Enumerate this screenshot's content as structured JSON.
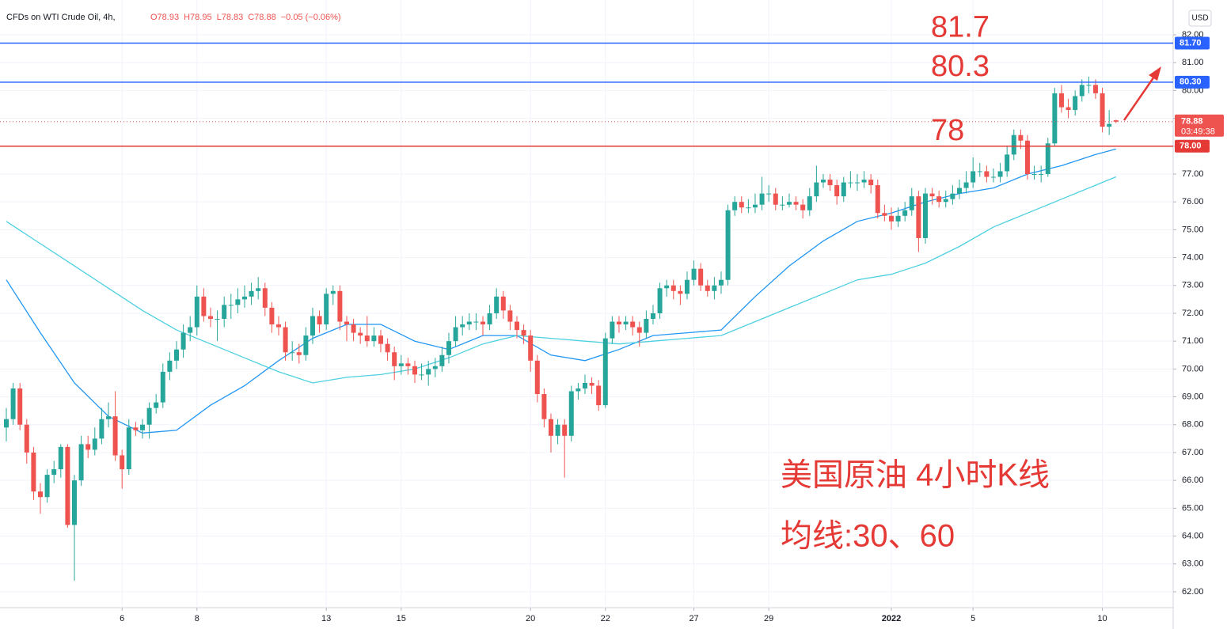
{
  "header": {
    "title": "CFDs on WTI Crude Oil, 4h,",
    "values": [
      "O78.93",
      "H78.95",
      "L78.83",
      "C78.88",
      "−0.05 (−0.06%)"
    ],
    "currency": "USD"
  },
  "chart_data": {
    "type": "candlestick",
    "xlim": [
      -0.93,
      171.4
    ],
    "xticks": [
      {
        "value": 17,
        "label": "6"
      },
      {
        "value": 28,
        "label": "8"
      },
      {
        "value": 47,
        "label": "13"
      },
      {
        "value": 58,
        "label": "15"
      },
      {
        "value": 77,
        "label": "20"
      },
      {
        "value": 88,
        "label": "22"
      },
      {
        "value": 101,
        "label": "27"
      },
      {
        "value": 112,
        "label": "29"
      },
      {
        "value": 130,
        "label": "2022"
      },
      {
        "value": 142,
        "label": "5"
      },
      {
        "value": 161,
        "label": "10"
      }
    ],
    "ylim": [
      61.43,
      83.25
    ],
    "yticks": [
      {
        "value": 62,
        "label": "62.00"
      },
      {
        "value": 63,
        "label": "63.00"
      },
      {
        "value": 64,
        "label": "64.00"
      },
      {
        "value": 65,
        "label": "65.00"
      },
      {
        "value": 66,
        "label": "66.00"
      },
      {
        "value": 67,
        "label": "67.00"
      },
      {
        "value": 68,
        "label": "68.00"
      },
      {
        "value": 69,
        "label": "69.00"
      },
      {
        "value": 70,
        "label": "70.00"
      },
      {
        "value": 71,
        "label": "71.00"
      },
      {
        "value": 72,
        "label": "72.00"
      },
      {
        "value": 73,
        "label": "73.00"
      },
      {
        "value": 74,
        "label": "74.00"
      },
      {
        "value": 75,
        "label": "75.00"
      },
      {
        "value": 76,
        "label": "76.00"
      },
      {
        "value": 77,
        "label": "77.00"
      },
      {
        "value": 78,
        "label": "78.00"
      },
      {
        "value": 79,
        "label": "79.00"
      },
      {
        "value": 80,
        "label": "80.00"
      },
      {
        "value": 81,
        "label": "81.00"
      },
      {
        "value": 82,
        "label": "82.00"
      }
    ],
    "grid": true,
    "up_color": "#26a69a",
    "down_color": "#ef5350",
    "candles": [
      [
        67.9,
        68.6,
        67.4,
        68.2
      ],
      [
        68.2,
        69.5,
        68.0,
        69.3
      ],
      [
        69.3,
        69.5,
        67.8,
        68.0
      ],
      [
        68.0,
        68.2,
        66.6,
        67.0
      ],
      [
        67.0,
        67.2,
        65.3,
        65.6
      ],
      [
        65.6,
        65.9,
        64.8,
        65.4
      ],
      [
        65.4,
        66.4,
        65.2,
        66.2
      ],
      [
        66.2,
        66.7,
        65.9,
        66.4
      ],
      [
        66.4,
        67.3,
        66.1,
        67.2
      ],
      [
        67.2,
        67.3,
        64.3,
        64.4
      ],
      [
        64.4,
        66.2,
        62.4,
        66.0
      ],
      [
        66.0,
        67.6,
        65.8,
        67.3
      ],
      [
        67.3,
        67.6,
        66.8,
        67.1
      ],
      [
        67.1,
        67.9,
        66.9,
        67.5
      ],
      [
        67.5,
        68.6,
        67.3,
        68.2
      ],
      [
        68.2,
        68.8,
        67.9,
        68.3
      ],
      [
        68.3,
        69.2,
        66.7,
        66.9
      ],
      [
        66.9,
        67.1,
        65.7,
        66.4
      ],
      [
        66.4,
        68.2,
        66.2,
        67.9
      ],
      [
        67.9,
        68.1,
        67.6,
        67.8
      ],
      [
        67.8,
        68.2,
        67.5,
        68.0
      ],
      [
        68.0,
        68.8,
        67.5,
        68.6
      ],
      [
        68.6,
        69.1,
        68.4,
        68.8
      ],
      [
        68.8,
        70.2,
        68.6,
        69.9
      ],
      [
        69.9,
        70.6,
        69.6,
        70.3
      ],
      [
        70.3,
        71.0,
        70.0,
        70.7
      ],
      [
        70.7,
        71.6,
        70.4,
        71.3
      ],
      [
        71.3,
        71.9,
        71.0,
        71.5
      ],
      [
        71.5,
        73.0,
        71.2,
        72.6
      ],
      [
        72.6,
        72.9,
        71.7,
        71.9
      ],
      [
        71.9,
        72.2,
        71.5,
        71.8
      ],
      [
        71.8,
        72.1,
        71.0,
        71.8
      ],
      [
        71.8,
        72.6,
        71.5,
        72.3
      ],
      [
        72.3,
        72.7,
        71.8,
        72.3
      ],
      [
        72.3,
        72.9,
        72.0,
        72.5
      ],
      [
        72.5,
        73.0,
        72.2,
        72.6
      ],
      [
        72.6,
        73.1,
        72.3,
        72.8
      ],
      [
        72.8,
        73.3,
        72.5,
        72.9
      ],
      [
        72.9,
        73.1,
        71.9,
        72.2
      ],
      [
        72.2,
        72.4,
        71.3,
        71.6
      ],
      [
        71.6,
        71.9,
        71.2,
        71.5
      ],
      [
        71.5,
        71.7,
        70.3,
        70.6
      ],
      [
        70.6,
        71.0,
        70.3,
        70.6
      ],
      [
        70.6,
        70.9,
        70.2,
        70.5
      ],
      [
        70.5,
        71.5,
        70.3,
        71.2
      ],
      [
        71.2,
        72.2,
        70.9,
        71.9
      ],
      [
        71.9,
        72.1,
        71.3,
        71.6
      ],
      [
        71.6,
        72.9,
        71.4,
        72.7
      ],
      [
        72.7,
        73.0,
        72.3,
        72.8
      ],
      [
        72.8,
        73.0,
        71.4,
        71.7
      ],
      [
        71.7,
        71.9,
        71.0,
        71.6
      ],
      [
        71.6,
        71.8,
        71.0,
        71.3
      ],
      [
        71.3,
        71.5,
        70.9,
        71.2
      ],
      [
        71.2,
        71.9,
        70.8,
        71.0
      ],
      [
        71.0,
        71.5,
        70.8,
        71.2
      ],
      [
        71.2,
        71.4,
        70.6,
        70.9
      ],
      [
        70.9,
        71.1,
        70.3,
        70.6
      ],
      [
        70.6,
        70.8,
        69.6,
        70.1
      ],
      [
        70.1,
        70.5,
        69.8,
        70.2
      ],
      [
        70.2,
        70.4,
        69.8,
        70.1
      ],
      [
        70.1,
        70.3,
        69.5,
        69.8
      ],
      [
        69.8,
        70.2,
        69.6,
        69.8
      ],
      [
        69.8,
        70.3,
        69.4,
        70.0
      ],
      [
        70.0,
        70.4,
        69.7,
        70.1
      ],
      [
        70.1,
        70.8,
        69.9,
        70.5
      ],
      [
        70.5,
        71.3,
        70.2,
        71.0
      ],
      [
        71.0,
        71.9,
        70.8,
        71.5
      ],
      [
        71.5,
        71.9,
        71.2,
        71.6
      ],
      [
        71.6,
        72.0,
        71.4,
        71.7
      ],
      [
        71.7,
        72.0,
        71.4,
        71.7
      ],
      [
        71.7,
        71.9,
        71.2,
        71.6
      ],
      [
        71.6,
        72.3,
        71.4,
        72.0
      ],
      [
        72.0,
        72.9,
        71.8,
        72.6
      ],
      [
        72.6,
        72.8,
        71.8,
        72.1
      ],
      [
        72.1,
        72.3,
        71.4,
        71.7
      ],
      [
        71.7,
        71.9,
        71.1,
        71.4
      ],
      [
        71.4,
        71.6,
        70.9,
        71.2
      ],
      [
        71.2,
        71.4,
        69.9,
        70.3
      ],
      [
        70.3,
        70.5,
        68.8,
        69.1
      ],
      [
        69.1,
        69.3,
        67.9,
        68.2
      ],
      [
        68.2,
        68.4,
        67.0,
        67.6
      ],
      [
        67.6,
        68.2,
        67.3,
        68.0
      ],
      [
        68.0,
        68.2,
        66.1,
        67.6
      ],
      [
        67.6,
        69.4,
        67.4,
        69.2
      ],
      [
        69.2,
        69.5,
        68.9,
        69.3
      ],
      [
        69.3,
        69.8,
        69.1,
        69.5
      ],
      [
        69.5,
        69.7,
        69.1,
        69.4
      ],
      [
        69.4,
        69.6,
        68.5,
        68.7
      ],
      [
        68.7,
        71.3,
        68.6,
        71.1
      ],
      [
        71.1,
        71.9,
        70.9,
        71.7
      ],
      [
        71.7,
        71.9,
        71.3,
        71.6
      ],
      [
        71.6,
        71.9,
        71.4,
        71.7
      ],
      [
        71.7,
        71.9,
        71.2,
        71.5
      ],
      [
        71.5,
        71.7,
        70.8,
        71.3
      ],
      [
        71.3,
        72.1,
        71.1,
        71.8
      ],
      [
        71.8,
        72.3,
        71.6,
        72.0
      ],
      [
        72.0,
        73.1,
        71.8,
        72.9
      ],
      [
        72.9,
        73.2,
        72.6,
        73.0
      ],
      [
        73.0,
        73.2,
        72.5,
        72.8
      ],
      [
        72.8,
        73.0,
        72.3,
        72.7
      ],
      [
        72.7,
        73.5,
        72.5,
        73.2
      ],
      [
        73.2,
        73.9,
        73.0,
        73.6
      ],
      [
        73.6,
        73.8,
        72.8,
        73.0
      ],
      [
        73.0,
        73.2,
        72.6,
        72.8
      ],
      [
        72.8,
        73.3,
        72.5,
        73.0
      ],
      [
        73.0,
        73.5,
        72.7,
        73.2
      ],
      [
        73.2,
        75.9,
        73.0,
        75.7
      ],
      [
        75.7,
        76.2,
        75.5,
        76.0
      ],
      [
        76.0,
        76.2,
        75.6,
        75.8
      ],
      [
        75.8,
        76.1,
        75.6,
        75.8
      ],
      [
        75.8,
        76.3,
        75.6,
        75.9
      ],
      [
        75.9,
        76.9,
        75.7,
        76.3
      ],
      [
        76.3,
        76.6,
        76.0,
        76.3
      ],
      [
        76.3,
        76.5,
        75.7,
        75.9
      ],
      [
        75.9,
        76.2,
        75.7,
        75.9
      ],
      [
        75.9,
        76.3,
        75.8,
        76.0
      ],
      [
        76.0,
        76.2,
        75.7,
        75.9
      ],
      [
        75.9,
        76.1,
        75.4,
        75.7
      ],
      [
        75.7,
        76.5,
        75.5,
        76.2
      ],
      [
        76.2,
        77.3,
        76.0,
        76.7
      ],
      [
        76.7,
        77.0,
        76.5,
        76.8
      ],
      [
        76.8,
        77.0,
        76.4,
        76.6
      ],
      [
        76.6,
        76.8,
        75.9,
        76.2
      ],
      [
        76.2,
        76.9,
        76.0,
        76.7
      ],
      [
        76.7,
        77.1,
        76.5,
        76.7
      ],
      [
        76.7,
        77.0,
        76.4,
        76.7
      ],
      [
        76.7,
        77.1,
        76.5,
        76.8
      ],
      [
        76.8,
        77.0,
        76.3,
        76.6
      ],
      [
        76.6,
        76.8,
        75.4,
        75.6
      ],
      [
        75.6,
        75.9,
        75.3,
        75.5
      ],
      [
        75.5,
        75.8,
        75.0,
        75.3
      ],
      [
        75.3,
        75.8,
        75.1,
        75.5
      ],
      [
        75.5,
        76.0,
        75.3,
        75.7
      ],
      [
        75.7,
        76.5,
        75.5,
        76.2
      ],
      [
        76.2,
        76.4,
        74.2,
        74.7
      ],
      [
        74.7,
        76.5,
        74.5,
        76.3
      ],
      [
        76.3,
        76.5,
        75.9,
        76.2
      ],
      [
        76.2,
        76.4,
        75.8,
        76.0
      ],
      [
        76.0,
        76.4,
        75.8,
        76.1
      ],
      [
        76.1,
        76.6,
        75.9,
        76.3
      ],
      [
        76.3,
        76.8,
        76.1,
        76.5
      ],
      [
        76.5,
        77.1,
        76.3,
        76.7
      ],
      [
        76.7,
        77.6,
        76.5,
        77.1
      ],
      [
        77.1,
        77.4,
        76.9,
        77.1
      ],
      [
        77.1,
        77.3,
        76.7,
        76.9
      ],
      [
        76.9,
        77.2,
        76.7,
        76.9
      ],
      [
        76.9,
        77.4,
        76.7,
        77.1
      ],
      [
        77.1,
        78.0,
        76.9,
        77.7
      ],
      [
        77.7,
        78.6,
        77.5,
        78.4
      ],
      [
        78.4,
        78.6,
        77.9,
        78.2
      ],
      [
        78.2,
        78.4,
        76.8,
        77.0
      ],
      [
        77.0,
        77.3,
        76.8,
        77.0
      ],
      [
        77.0,
        77.3,
        76.7,
        77.0
      ],
      [
        77.0,
        78.3,
        76.9,
        78.1
      ],
      [
        78.1,
        80.1,
        78.0,
        79.9
      ],
      [
        79.9,
        80.2,
        79.2,
        79.4
      ],
      [
        79.4,
        79.7,
        79.0,
        79.3
      ],
      [
        79.3,
        80.0,
        79.1,
        79.8
      ],
      [
        79.8,
        80.4,
        79.6,
        80.2
      ],
      [
        80.2,
        80.5,
        79.9,
        80.2
      ],
      [
        80.2,
        80.4,
        79.7,
        79.9
      ],
      [
        79.9,
        80.1,
        78.5,
        78.7
      ],
      [
        78.7,
        79.3,
        78.4,
        78.8
      ],
      [
        78.93,
        78.95,
        78.83,
        78.88
      ]
    ],
    "series": [
      {
        "color": "#2196f3",
        "x": [
          0,
          5,
          10,
          15,
          20,
          25,
          30,
          35,
          40,
          45,
          50,
          55,
          60,
          65,
          70,
          75,
          80,
          85,
          90,
          95,
          100,
          105,
          110,
          115,
          120,
          125,
          130,
          135,
          140,
          145,
          150,
          155,
          160,
          163
        ],
        "values": [
          73.2,
          71.3,
          69.5,
          68.3,
          67.7,
          67.8,
          68.7,
          69.4,
          70.3,
          71.1,
          71.6,
          71.6,
          71.0,
          70.7,
          71.2,
          71.2,
          70.5,
          70.3,
          70.7,
          71.2,
          71.3,
          71.4,
          72.6,
          73.7,
          74.6,
          75.3,
          75.6,
          76.0,
          76.3,
          76.5,
          77.0,
          77.3,
          77.7,
          77.9
        ]
      },
      {
        "color": "#4dd0e1",
        "x": [
          0,
          5,
          10,
          15,
          20,
          25,
          30,
          35,
          40,
          45,
          50,
          55,
          60,
          65,
          70,
          75,
          80,
          85,
          90,
          95,
          100,
          105,
          110,
          115,
          120,
          125,
          130,
          135,
          140,
          145,
          150,
          155,
          160,
          163
        ],
        "values": [
          75.3,
          74.5,
          73.7,
          72.9,
          72.1,
          71.4,
          70.9,
          70.4,
          69.9,
          69.5,
          69.7,
          69.8,
          70.0,
          70.4,
          70.9,
          71.2,
          71.1,
          71.0,
          70.9,
          71.0,
          71.1,
          71.2,
          71.7,
          72.2,
          72.7,
          73.2,
          73.4,
          73.8,
          74.4,
          75.1,
          75.6,
          76.1,
          76.6,
          76.9
        ]
      }
    ],
    "price_lines": [
      {
        "value": 81.7,
        "label": "81.70",
        "color": "#2962ff"
      },
      {
        "value": 80.3,
        "label": "80.30",
        "color": "#2962ff"
      },
      {
        "value": 78,
        "label": "78.00",
        "color": "#e53935"
      }
    ],
    "last_price": {
      "value": 78.88,
      "label": "78.88",
      "countdown": "03:49:38",
      "color": "#ef5350"
    },
    "annotations": [
      "81.7",
      "80.3",
      "78"
    ],
    "notes": [
      "美国原油 4小时K线",
      "均线:30、60"
    ]
  }
}
